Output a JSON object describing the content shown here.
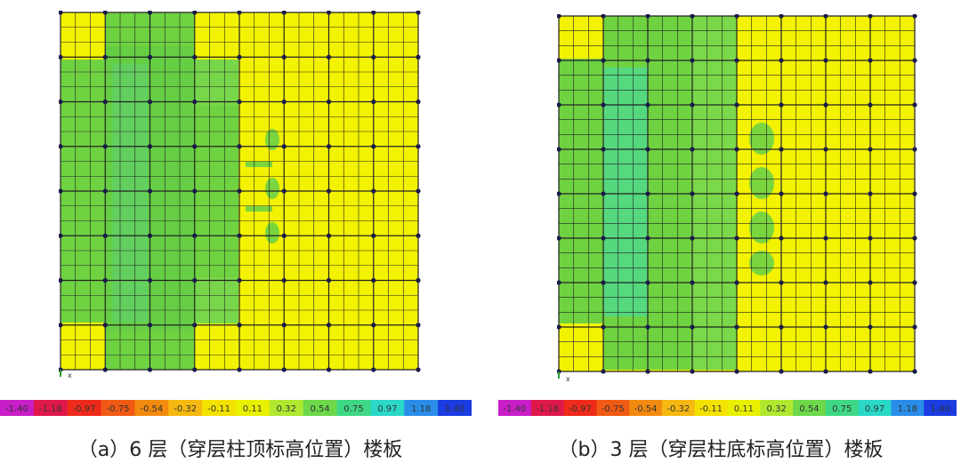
{
  "panels": [
    {
      "id": "a",
      "caption": "（a）6 层（穿层柱顶标高位置）楼板",
      "axis_label": "x",
      "colorbar": [
        "-1.40",
        "-1.18",
        "-0.97",
        "-0.75",
        "-0.54",
        "-0.32",
        "-0.11",
        "0.11",
        "0.32",
        "0.54",
        "0.75",
        "0.97",
        "1.18",
        "1.40"
      ]
    },
    {
      "id": "b",
      "caption": "（b）3 层（穿层柱底标高位置）楼板",
      "axis_label": "x",
      "colorbar": [
        "-1.40",
        "-1.18",
        "-0.97",
        "-0.75",
        "-0.54",
        "-0.32",
        "-0.11",
        "0.11",
        "0.32",
        "0.54",
        "0.75",
        "0.97",
        "1.18",
        "1.40"
      ]
    }
  ],
  "colors": {
    "yellow": "#f3f200",
    "green": "#6fd241",
    "light_green": "#8ee05a",
    "cyan": "#38e0c8",
    "grid": "#222222",
    "node": "#1a1a4a"
  }
}
